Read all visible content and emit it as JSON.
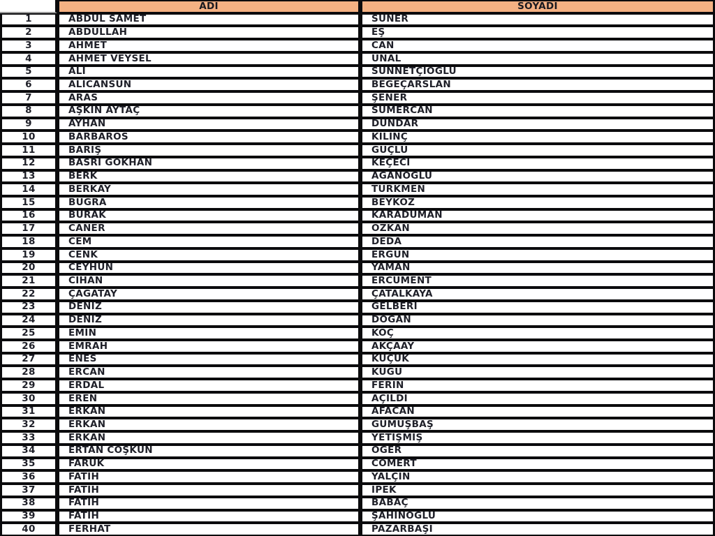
{
  "colors": {
    "header_bg": "#f4b183",
    "border": "#0b0b0d",
    "text": "#1e1f28"
  },
  "table": {
    "columns": {
      "adi": "ADI",
      "soyadi": "SOYADI"
    },
    "rows": [
      {
        "no": "1",
        "adi": "ABDUL SAMET",
        "soyadi": "SÜNER"
      },
      {
        "no": "2",
        "adi": "ABDULLAH",
        "soyadi": "EŞ"
      },
      {
        "no": "3",
        "adi": "AHMET",
        "soyadi": "CAN"
      },
      {
        "no": "4",
        "adi": "AHMET VEYSEL",
        "soyadi": "ÜNAL"
      },
      {
        "no": "5",
        "adi": "ALİ",
        "soyadi": "SÜNNETÇİOĞLU"
      },
      {
        "no": "6",
        "adi": "ALİCANSUN",
        "soyadi": "BEGEÇARSLAN"
      },
      {
        "no": "7",
        "adi": "ARAS",
        "soyadi": "ŞENER"
      },
      {
        "no": "8",
        "adi": "AŞKIN AYTAÇ",
        "soyadi": "SÜMERCAN"
      },
      {
        "no": "9",
        "adi": "AYHAN",
        "soyadi": "DÜNDAR"
      },
      {
        "no": "10",
        "adi": "BARBAROS",
        "soyadi": "KILINÇ"
      },
      {
        "no": "11",
        "adi": "BARIŞ",
        "soyadi": "GÜÇLÜ"
      },
      {
        "no": "12",
        "adi": "BASRİ GÖKHAN",
        "soyadi": "KEÇECİ"
      },
      {
        "no": "13",
        "adi": "BERK",
        "soyadi": "AĞANOĞLU"
      },
      {
        "no": "14",
        "adi": "BERKAY",
        "soyadi": "TÜRKMEN"
      },
      {
        "no": "15",
        "adi": "BUĞRA",
        "soyadi": "BEYKOZ"
      },
      {
        "no": "16",
        "adi": "BURAK",
        "soyadi": "KARADUMAN"
      },
      {
        "no": "17",
        "adi": "CANER",
        "soyadi": "ÖZKAN"
      },
      {
        "no": "18",
        "adi": "CEM",
        "soyadi": "DEDA"
      },
      {
        "no": "19",
        "adi": "CENK",
        "soyadi": "ERGÜN"
      },
      {
        "no": "20",
        "adi": "CEYHUN",
        "soyadi": "YAMAN"
      },
      {
        "no": "21",
        "adi": "CİHAN",
        "soyadi": "ERCÜMENT"
      },
      {
        "no": "22",
        "adi": "ÇAĞATAY",
        "soyadi": "ÇATALKAYA"
      },
      {
        "no": "23",
        "adi": "DENİZ",
        "soyadi": "GELBERİ"
      },
      {
        "no": "24",
        "adi": "DENİZ",
        "soyadi": "DOĞAN"
      },
      {
        "no": "25",
        "adi": "EMİN",
        "soyadi": "KOÇ"
      },
      {
        "no": "26",
        "adi": "EMRAH",
        "soyadi": "AKÇAAY"
      },
      {
        "no": "27",
        "adi": "ENES",
        "soyadi": "KÜÇÜK"
      },
      {
        "no": "28",
        "adi": "ERCAN",
        "soyadi": "KUGU"
      },
      {
        "no": "29",
        "adi": "ERDAL",
        "soyadi": "FERİN"
      },
      {
        "no": "30",
        "adi": "EREN",
        "soyadi": "AÇILDI"
      },
      {
        "no": "31",
        "adi": "ERKAN",
        "soyadi": "AFACAN"
      },
      {
        "no": "32",
        "adi": "ERKAN",
        "soyadi": "GÜMÜŞBAŞ"
      },
      {
        "no": "33",
        "adi": "ERKAN",
        "soyadi": "YETİŞMİŞ"
      },
      {
        "no": "34",
        "adi": "ERTAN COŞKUN",
        "soyadi": "ÖĞER"
      },
      {
        "no": "35",
        "adi": "FARUK",
        "soyadi": "CÖMERT"
      },
      {
        "no": "36",
        "adi": "FATİH",
        "soyadi": "YALÇIN"
      },
      {
        "no": "37",
        "adi": "FATİH",
        "soyadi": "İPEK"
      },
      {
        "no": "38",
        "adi": "FATİH",
        "soyadi": "BABAÇ"
      },
      {
        "no": "39",
        "adi": "FATİH",
        "soyadi": "ŞAHİNOĞLU"
      },
      {
        "no": "40",
        "adi": "FERHAT",
        "soyadi": "PAZARBAŞI"
      }
    ]
  }
}
